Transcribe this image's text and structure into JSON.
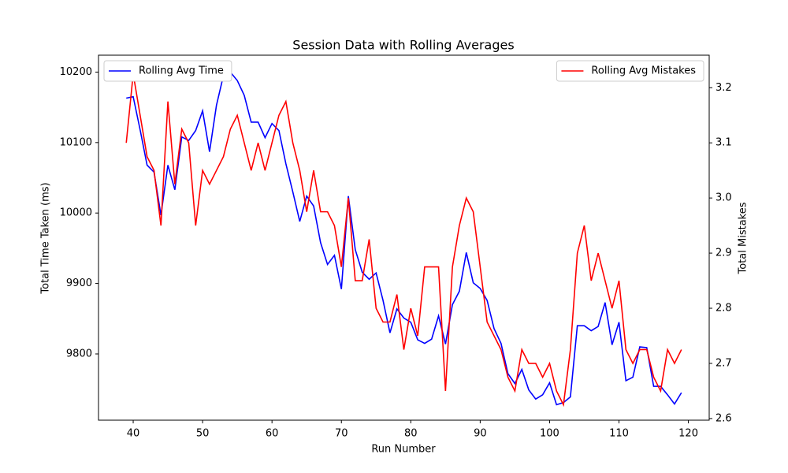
{
  "chart_data": {
    "type": "line",
    "title": "Session Data with Rolling Averages",
    "xlabel": "Run Number",
    "ylabel": "Total Time Taken (ms)",
    "y2label": "Total Mistakes",
    "x": [
      39,
      40,
      41,
      42,
      43,
      44,
      45,
      46,
      47,
      48,
      49,
      50,
      51,
      52,
      53,
      54,
      55,
      56,
      57,
      58,
      59,
      60,
      61,
      62,
      63,
      64,
      65,
      66,
      67,
      68,
      69,
      70,
      71,
      72,
      73,
      74,
      75,
      76,
      77,
      78,
      79,
      80,
      81,
      82,
      83,
      84,
      85,
      86,
      87,
      88,
      89,
      90,
      91,
      92,
      93,
      94,
      95,
      96,
      97,
      98,
      99,
      100,
      101,
      102,
      103,
      104,
      105,
      106,
      107,
      108,
      109,
      110,
      111,
      112,
      113,
      114,
      115,
      116,
      117,
      118,
      119
    ],
    "series": [
      {
        "name": "Rolling Avg Time",
        "color": "#0000ff",
        "axis": "y",
        "legend": "upper left",
        "values": [
          10163,
          10165,
          10118,
          10068,
          10058,
          9997,
          10068,
          10033,
          10108,
          10103,
          10117,
          10145,
          10087,
          10153,
          10195,
          10200,
          10188,
          10167,
          10129,
          10129,
          10107,
          10127,
          10117,
          10070,
          10030,
          9988,
          10024,
          10010,
          9958,
          9927,
          9940,
          9892,
          10024,
          9948,
          9916,
          9906,
          9915,
          9876,
          9830,
          9864,
          9851,
          9845,
          9820,
          9815,
          9821,
          9854,
          9814,
          9870,
          9889,
          9944,
          9901,
          9893,
          9876,
          9836,
          9815,
          9772,
          9758,
          9778,
          9749,
          9736,
          9742,
          9759,
          9728,
          9731,
          9739,
          9840,
          9840,
          9833,
          9839,
          9873,
          9813,
          9845,
          9762,
          9767,
          9810,
          9809,
          9754,
          9754,
          9742,
          9729,
          9745
        ]
      },
      {
        "name": "Rolling Avg Mistakes",
        "color": "#ff0000",
        "axis": "y2",
        "legend": "upper right",
        "values": [
          3.1,
          3.225,
          3.15,
          3.075,
          3.05,
          2.95,
          3.175,
          3.025,
          3.125,
          3.1,
          2.95,
          3.05,
          3.025,
          3.05,
          3.075,
          3.125,
          3.15,
          3.1,
          3.05,
          3.1,
          3.05,
          3.1,
          3.15,
          3.175,
          3.1,
          3.05,
          2.975,
          3.05,
          2.975,
          2.975,
          2.95,
          2.875,
          3.0,
          2.85,
          2.85,
          2.925,
          2.8,
          2.775,
          2.775,
          2.825,
          2.725,
          2.8,
          2.75,
          2.875,
          2.875,
          2.875,
          2.65,
          2.875,
          2.95,
          3.0,
          2.975,
          2.875,
          2.775,
          2.75,
          2.725,
          2.675,
          2.65,
          2.725,
          2.7,
          2.7,
          2.675,
          2.7,
          2.65,
          2.625,
          2.725,
          2.9,
          2.95,
          2.85,
          2.9,
          2.85,
          2.8,
          2.85,
          2.725,
          2.7,
          2.725,
          2.725,
          2.675,
          2.65,
          2.725,
          2.7,
          2.725
        ]
      }
    ],
    "xlim": [
      35,
      123
    ],
    "xticks": [
      40,
      50,
      60,
      70,
      80,
      90,
      100,
      110,
      120
    ],
    "ylim": [
      9706,
      10224
    ],
    "yticks": [
      9800,
      9900,
      10000,
      10100,
      10200
    ],
    "y2lim": [
      2.597,
      3.259
    ],
    "y2ticks": [
      2.6,
      2.7,
      2.8,
      2.9,
      {
        "value": 3,
        "label": "3.0"
      },
      3.1,
      3.2
    ],
    "grid": false
  }
}
